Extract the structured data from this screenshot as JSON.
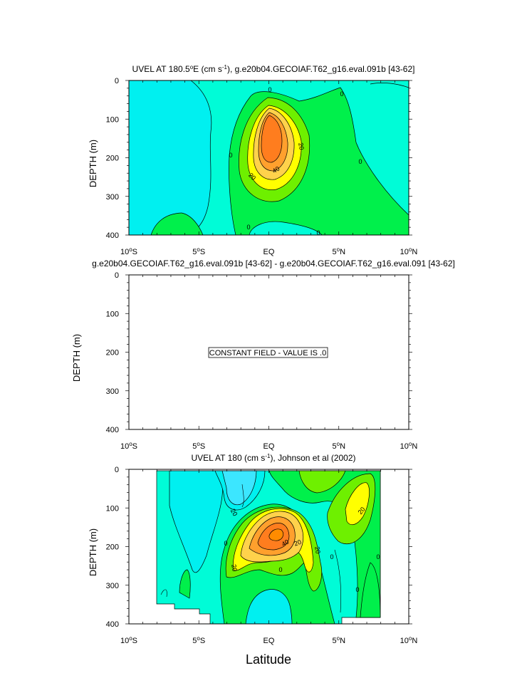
{
  "colors": {
    "cyan": "#00f0f0",
    "aqua": "#00fcd7",
    "green": "#00f04b",
    "lightgreen": "#6ef000",
    "yellow": "#ffff00",
    "lightorange": "#ffd24b",
    "orange": "#ffa02d",
    "darkorange": "#ff7d1e",
    "skyblue": "#3ce6ff",
    "bg": "#ffffff"
  },
  "chart_data": [
    {
      "type": "heatmap",
      "subtype": "filled-contour",
      "title": "UVEL AT 180.5°E (cm s⁻¹), g.e20b04.GECOIAF.T62_g16.eval.091b [43-62]",
      "xlabel": "",
      "ylabel": "DEPTH (m)",
      "xlim": [
        -10,
        10
      ],
      "ylim": [
        400,
        0
      ],
      "x_ticks": [
        "10°S",
        "5°S",
        "EQ",
        "5°N",
        "10°N"
      ],
      "y_ticks": [
        "0",
        "100",
        "200",
        "300",
        "400"
      ],
      "contour_interval": 10,
      "core": {
        "lat": 0,
        "depth": 165,
        "max": 55
      },
      "contour_labels": [
        "0",
        "0",
        "0",
        "0",
        "0",
        "0",
        "20",
        "20",
        "40"
      ]
    },
    {
      "type": "heatmap",
      "subtype": "filled-contour",
      "title": "g.e20b04.GECOIAF.T62_g16.eval.091b [43-62] - g.e20b04.GECOIAF.T62_g16.eval.091 [43-62]",
      "xlabel": "",
      "ylabel": "DEPTH (m)",
      "xlim": [
        -10,
        10
      ],
      "ylim": [
        400,
        0
      ],
      "x_ticks": [
        "10°S",
        "5°S",
        "EQ",
        "5°N",
        "10°N"
      ],
      "y_ticks": [
        "0",
        "100",
        "200",
        "300",
        "400"
      ],
      "annotation": "CONSTANT FIELD - VALUE IS .0",
      "constant_value": 0
    },
    {
      "type": "heatmap",
      "subtype": "filled-contour",
      "title": "UVEL AT 180 (cm s⁻¹), Johnson et al (2002)",
      "xlabel": "Latitude",
      "ylabel": "DEPTH (m)",
      "xlim": [
        -10,
        10
      ],
      "ylim": [
        400,
        0
      ],
      "x_ticks": [
        "10°S",
        "5°S",
        "EQ",
        "5°N",
        "10°N"
      ],
      "y_ticks": [
        "0",
        "100",
        "200",
        "300",
        "400"
      ],
      "data_extent_lat": [
        -8,
        8
      ],
      "contour_interval": 10,
      "core": {
        "lat": 0.5,
        "depth": 170,
        "max": 65
      },
      "contour_labels": [
        "20",
        "20",
        "20",
        "20",
        "20",
        "40",
        "0",
        "0",
        "0",
        "0",
        "0"
      ]
    }
  ]
}
